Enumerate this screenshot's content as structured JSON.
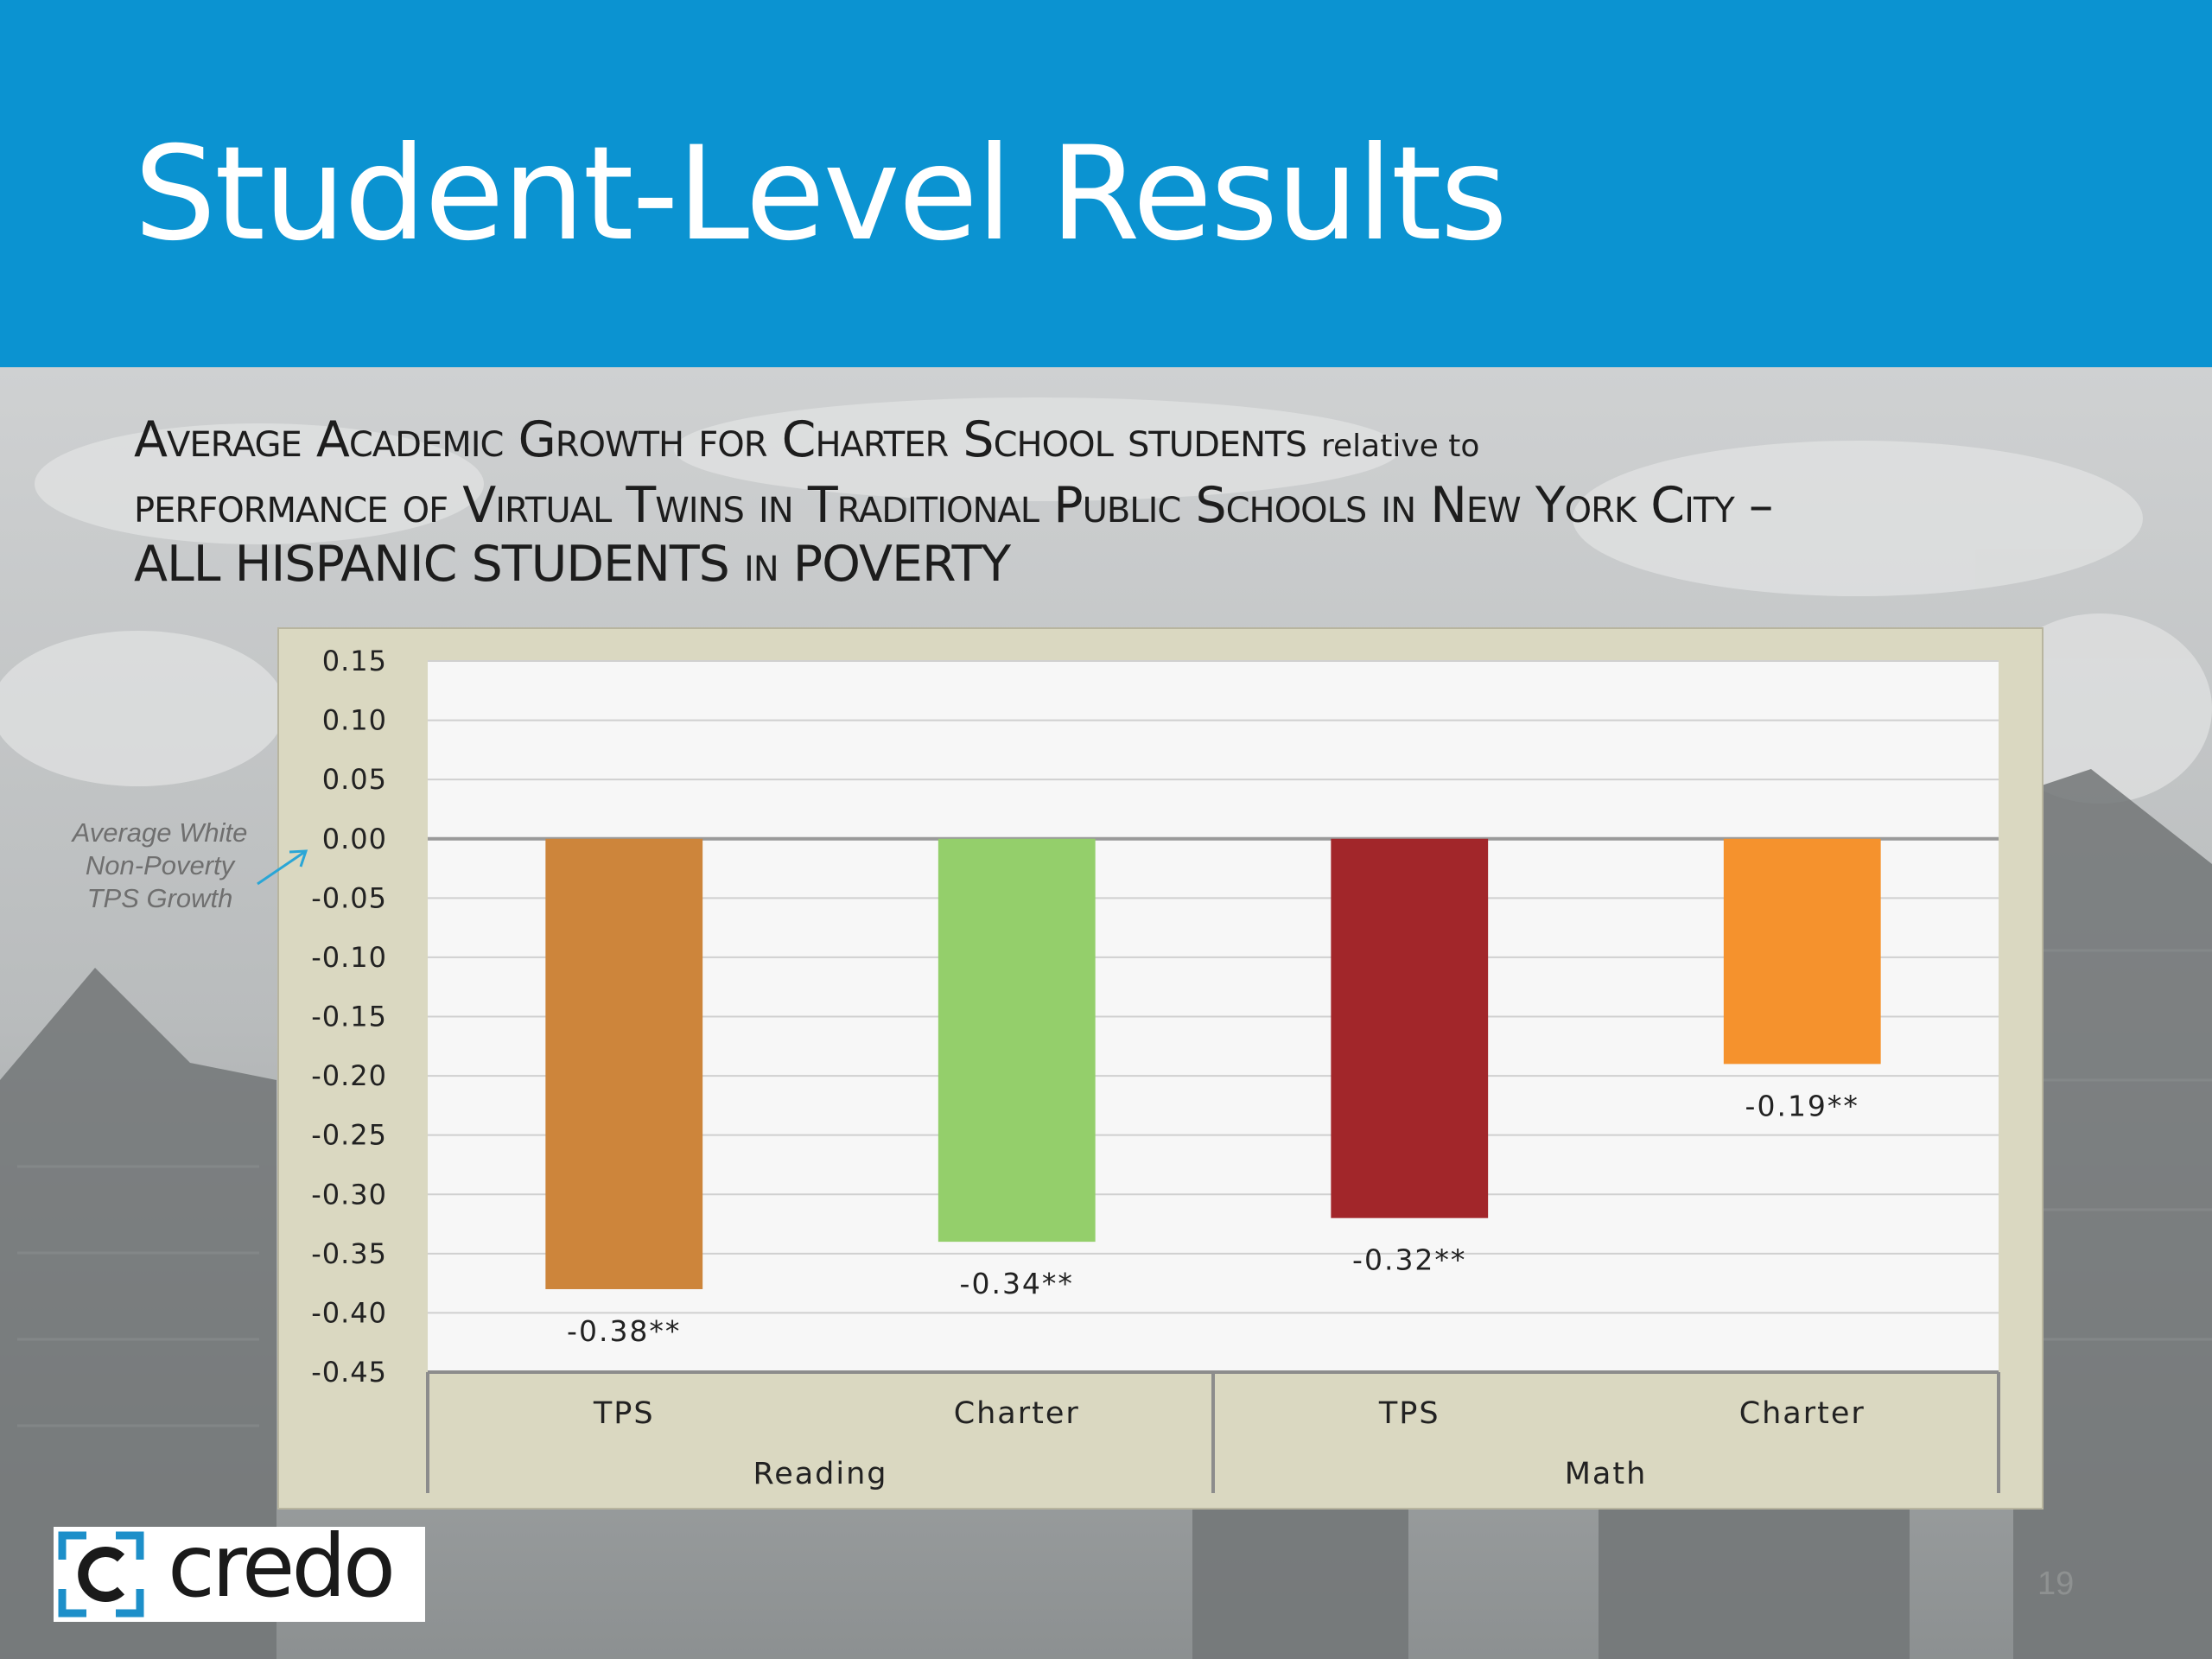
{
  "slide": {
    "title": "Student-Level Results",
    "subtitle_lines": [
      [
        {
          "text": "A",
          "style": "cap"
        },
        {
          "text": "verage ",
          "style": "cap"
        },
        {
          "text": "A",
          "style": "cap"
        },
        {
          "text": "cademic ",
          "style": "cap"
        },
        {
          "text": "G",
          "style": "cap"
        },
        {
          "text": "rowth for ",
          "style": "cap"
        },
        {
          "text": "C",
          "style": "cap"
        },
        {
          "text": "harter ",
          "style": "cap"
        },
        {
          "text": "S",
          "style": "cap"
        },
        {
          "text": "chool students ",
          "style": "cap"
        },
        {
          "text": "relative to",
          "style": "sm"
        }
      ],
      [
        {
          "text": "performance of ",
          "style": "cap"
        },
        {
          "text": "V",
          "style": "cap"
        },
        {
          "text": "irtual ",
          "style": "cap"
        },
        {
          "text": "T",
          "style": "cap"
        },
        {
          "text": "wins in ",
          "style": "cap"
        },
        {
          "text": "T",
          "style": "cap"
        },
        {
          "text": "raditional ",
          "style": "cap"
        },
        {
          "text": "P",
          "style": "cap"
        },
        {
          "text": "ublic ",
          "style": "cap"
        },
        {
          "text": "S",
          "style": "cap"
        },
        {
          "text": "chools in ",
          "style": "cap"
        },
        {
          "text": "N",
          "style": "cap"
        },
        {
          "text": "ew ",
          "style": "cap"
        },
        {
          "text": "Y",
          "style": "cap"
        },
        {
          "text": "ork ",
          "style": "cap"
        },
        {
          "text": "C",
          "style": "cap"
        },
        {
          "text": "ity –",
          "style": "cap"
        }
      ],
      [
        {
          "text": "ALL HISPANIC STUDENTS ",
          "style": "plain"
        },
        {
          "text": "in",
          "style": "cap"
        },
        {
          "text": " POVERTY",
          "style": "plain"
        }
      ]
    ],
    "annotation": "Average White Non-Poverty TPS Growth",
    "logo_text": "credo",
    "page_number": "19"
  },
  "colors": {
    "header": "#0b93d1",
    "frame": "#dad8c1",
    "plot_bg": "#f7f7f7",
    "grid": "#d0d0d0",
    "zero_line": "#9a9a9a",
    "arrow": "#2aa6d6"
  },
  "chart_data": {
    "type": "bar",
    "title": "",
    "xlabel": "",
    "ylabel": "",
    "ylim": [
      -0.45,
      0.15
    ],
    "yticks": [
      0.15,
      0.1,
      0.05,
      0.0,
      -0.05,
      -0.1,
      -0.15,
      -0.2,
      -0.25,
      -0.3,
      -0.35,
      -0.4,
      -0.45
    ],
    "ytick_labels": [
      "0.15",
      "0.10",
      "0.05",
      "0.00",
      "-0.05",
      "-0.10",
      "-0.15",
      "-0.20",
      "-0.25",
      "-0.30",
      "-0.35",
      "-0.40",
      "-0.45"
    ],
    "grid": true,
    "legend": "none",
    "groups": [
      "Reading",
      "Math"
    ],
    "categories": [
      "TPS",
      "Charter",
      "TPS",
      "Charter"
    ],
    "bar_group": [
      0,
      0,
      1,
      1
    ],
    "values": [
      -0.38,
      -0.34,
      -0.32,
      -0.19
    ],
    "data_labels": [
      "-0.38**",
      "-0.34**",
      "-0.32**",
      "-0.19**"
    ],
    "bar_colors": [
      "#cd853b",
      "#94cf6b",
      "#a2262a",
      "#f5922d"
    ]
  }
}
